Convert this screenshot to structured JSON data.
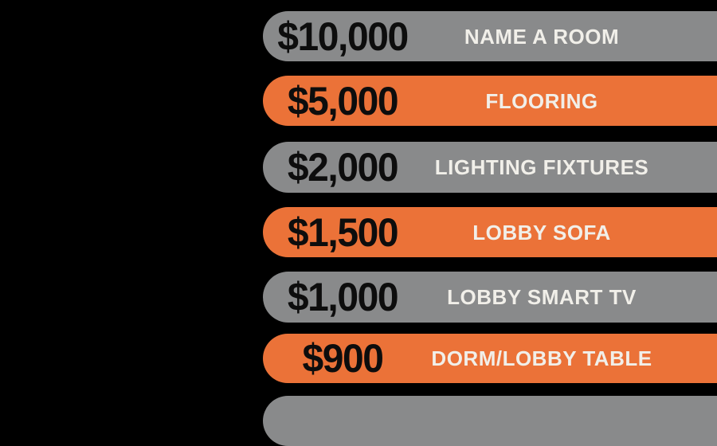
{
  "colors": {
    "bg": "#000000",
    "bar_gray": "#898a8b",
    "bar_orange": "#eb7238",
    "amount_ink": "#0d0d0d",
    "label_ink": "#f1efe9"
  },
  "tiers": [
    {
      "amount": "$10,000",
      "label": "NAME A ROOM",
      "variant": "gray"
    },
    {
      "amount": "$5,000",
      "label": "FLOORING",
      "variant": "orange"
    },
    {
      "amount": "$2,000",
      "label": "LIGHTING FIXTURES",
      "variant": "gray"
    },
    {
      "amount": "$1,500",
      "label": "LOBBY SOFA",
      "variant": "orange"
    },
    {
      "amount": "$1,000",
      "label": "LOBBY SMART TV",
      "variant": "gray"
    },
    {
      "amount": "$900",
      "label": "DORM/LOBBY TABLE",
      "variant": "orange"
    },
    {
      "amount": "",
      "label": "",
      "variant": "gray"
    }
  ],
  "chart_data": {
    "type": "table",
    "title": "",
    "categories": [
      "NAME A ROOM",
      "FLOORING",
      "LIGHTING FIXTURES",
      "LOBBY SOFA",
      "LOBBY SMART TV",
      "DORM/LOBBY TABLE"
    ],
    "values": [
      10000,
      5000,
      2000,
      1500,
      1000,
      900
    ],
    "value_labels": [
      "$10,000",
      "$5,000",
      "$2,000",
      "$1,500",
      "$1,000",
      "$900"
    ],
    "row_colors": [
      "gray",
      "orange",
      "gray",
      "orange",
      "gray",
      "orange"
    ],
    "legend_position": "none",
    "grid": false
  }
}
